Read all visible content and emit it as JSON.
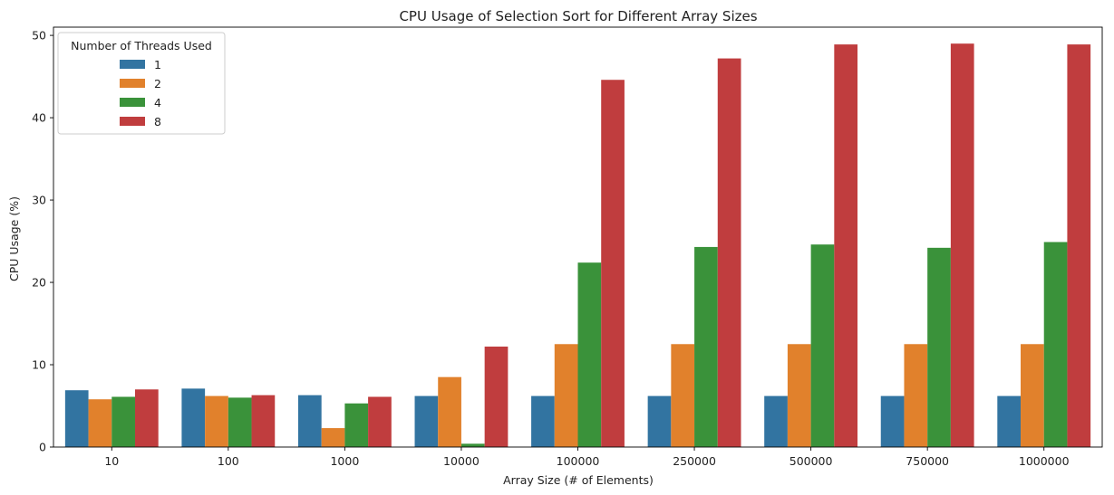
{
  "chart_data": {
    "type": "bar",
    "title": "CPU Usage of Selection Sort for Different Array Sizes",
    "xlabel": "Array Size (# of Elements)",
    "ylabel": "CPU Usage (%)",
    "categories": [
      "10",
      "100",
      "1000",
      "10000",
      "100000",
      "250000",
      "500000",
      "750000",
      "1000000"
    ],
    "ylim": [
      0,
      51
    ],
    "yticks": [
      0,
      10,
      20,
      30,
      40,
      50
    ],
    "grid": false,
    "legend": {
      "title": "Number of Threads Used",
      "placement": "top-left"
    },
    "series": [
      {
        "name": "1",
        "color": "#3274a1",
        "values": [
          6.9,
          7.1,
          6.3,
          6.2,
          6.2,
          6.2,
          6.2,
          6.2,
          6.2
        ]
      },
      {
        "name": "2",
        "color": "#e1812c",
        "values": [
          5.8,
          6.2,
          2.3,
          8.5,
          12.5,
          12.5,
          12.5,
          12.5,
          12.5
        ]
      },
      {
        "name": "4",
        "color": "#3a923a",
        "values": [
          6.1,
          6.0,
          5.3,
          0.4,
          22.4,
          24.3,
          24.6,
          24.2,
          24.9
        ]
      },
      {
        "name": "8",
        "color": "#c03d3e",
        "values": [
          7.0,
          6.3,
          6.1,
          12.2,
          44.6,
          47.2,
          48.9,
          49.0,
          48.9
        ]
      }
    ]
  }
}
